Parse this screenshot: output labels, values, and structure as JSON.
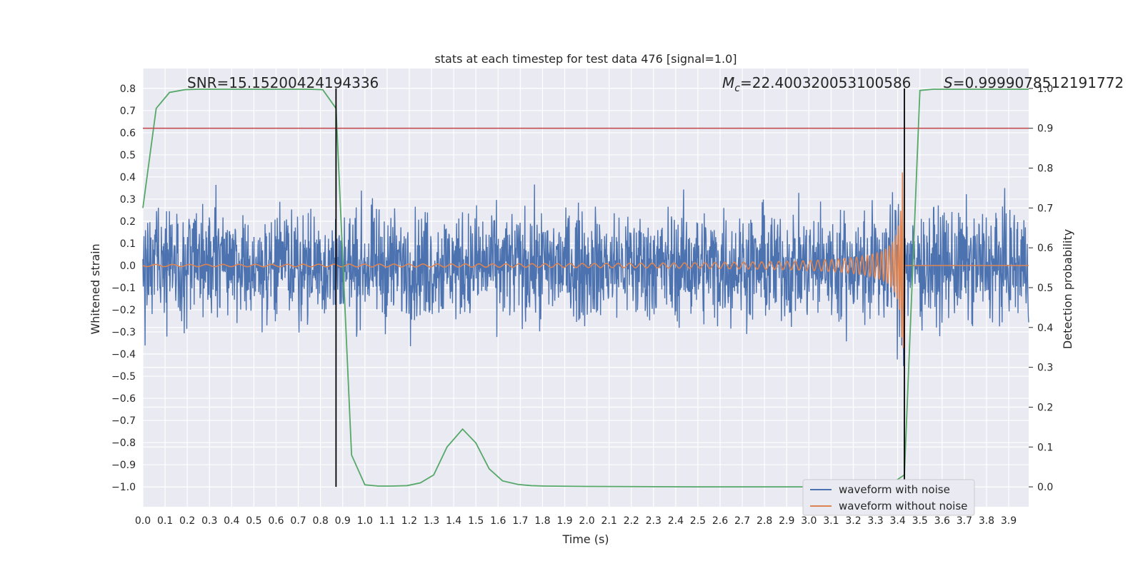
{
  "chart_data": {
    "type": "line",
    "title": "stats at each timestep for test data 476 [signal=1.0]",
    "xlabel": "Time (s)",
    "ylabel": "Whitened strain",
    "y2label": "Detection probability",
    "xlim": [
      0.0,
      3.99
    ],
    "ylim": [
      -1.09,
      0.89
    ],
    "y2lim": [
      -0.05,
      1.05
    ],
    "x_ticks": [
      "0.0",
      "0.1",
      "0.2",
      "0.3",
      "0.4",
      "0.5",
      "0.6",
      "0.7",
      "0.8",
      "0.9",
      "1.0",
      "1.1",
      "1.2",
      "1.3",
      "1.4",
      "1.5",
      "1.6",
      "1.7",
      "1.8",
      "1.9",
      "2.0",
      "2.1",
      "2.2",
      "2.3",
      "2.4",
      "2.5",
      "2.6",
      "2.7",
      "2.8",
      "2.9",
      "3.0",
      "3.1",
      "3.2",
      "3.3",
      "3.4",
      "3.5",
      "3.6",
      "3.7",
      "3.8",
      "3.9"
    ],
    "y_ticks": [
      "0.8",
      "0.7",
      "0.6",
      "0.5",
      "0.4",
      "0.3",
      "0.2",
      "0.1",
      "0.0",
      "−0.1",
      "−0.2",
      "−0.3",
      "−0.4",
      "−0.5",
      "−0.6",
      "−0.7",
      "−0.8",
      "−0.9",
      "−1.0"
    ],
    "y2_ticks": [
      "1.0",
      "0.9",
      "0.8",
      "0.7",
      "0.6",
      "0.5",
      "0.4",
      "0.3",
      "0.2",
      "0.1",
      "0.0"
    ],
    "annotations": {
      "snr": "SNR=15.15200424194336",
      "mc_symbol": "M",
      "mc_sub": "c",
      "mc_value": "=22.400320053100586",
      "s_symbol": "S",
      "s_value": "=0.9999078512191772"
    },
    "threshold_line": 0.9,
    "vertical_lines": [
      0.87,
      3.43
    ],
    "series": [
      {
        "name": "waveform with noise",
        "color": "#4c72b0",
        "axis": "left",
        "description": "whitened noisy strain, sampled densely over 0-4 s"
      },
      {
        "name": "waveform without noise",
        "color": "#dd8452",
        "axis": "left",
        "description": "chirp signal growing in amplitude and frequency until merger at ~3.43 s"
      },
      {
        "name": "detection probability",
        "color": "#55a868",
        "axis": "right",
        "x": [
          0.0,
          0.06,
          0.12,
          0.19,
          0.25,
          0.31,
          0.37,
          0.44,
          0.5,
          0.56,
          0.62,
          0.69,
          0.75,
          0.81,
          0.87,
          0.94,
          1.0,
          1.06,
          1.12,
          1.19,
          1.25,
          1.31,
          1.37,
          1.44,
          1.5,
          1.56,
          1.62,
          1.69,
          1.75,
          1.81,
          2.0,
          2.5,
          3.0,
          3.2,
          3.3,
          3.35,
          3.43,
          3.5,
          3.56,
          3.62,
          3.69,
          3.75,
          3.81,
          3.87,
          3.99
        ],
        "y": [
          0.7,
          0.95,
          0.99,
          0.997,
          0.998,
          0.998,
          0.998,
          0.998,
          0.998,
          0.998,
          0.998,
          0.998,
          0.998,
          0.997,
          0.95,
          0.08,
          0.005,
          0.002,
          0.002,
          0.003,
          0.01,
          0.03,
          0.1,
          0.145,
          0.11,
          0.045,
          0.015,
          0.006,
          0.003,
          0.002,
          0.001,
          0.0,
          0.0,
          0.0,
          0.0,
          0.0,
          0.03,
          0.995,
          0.998,
          0.998,
          0.998,
          0.998,
          0.998,
          0.998,
          0.998
        ]
      }
    ],
    "legend": {
      "position": "bottom-right"
    }
  }
}
